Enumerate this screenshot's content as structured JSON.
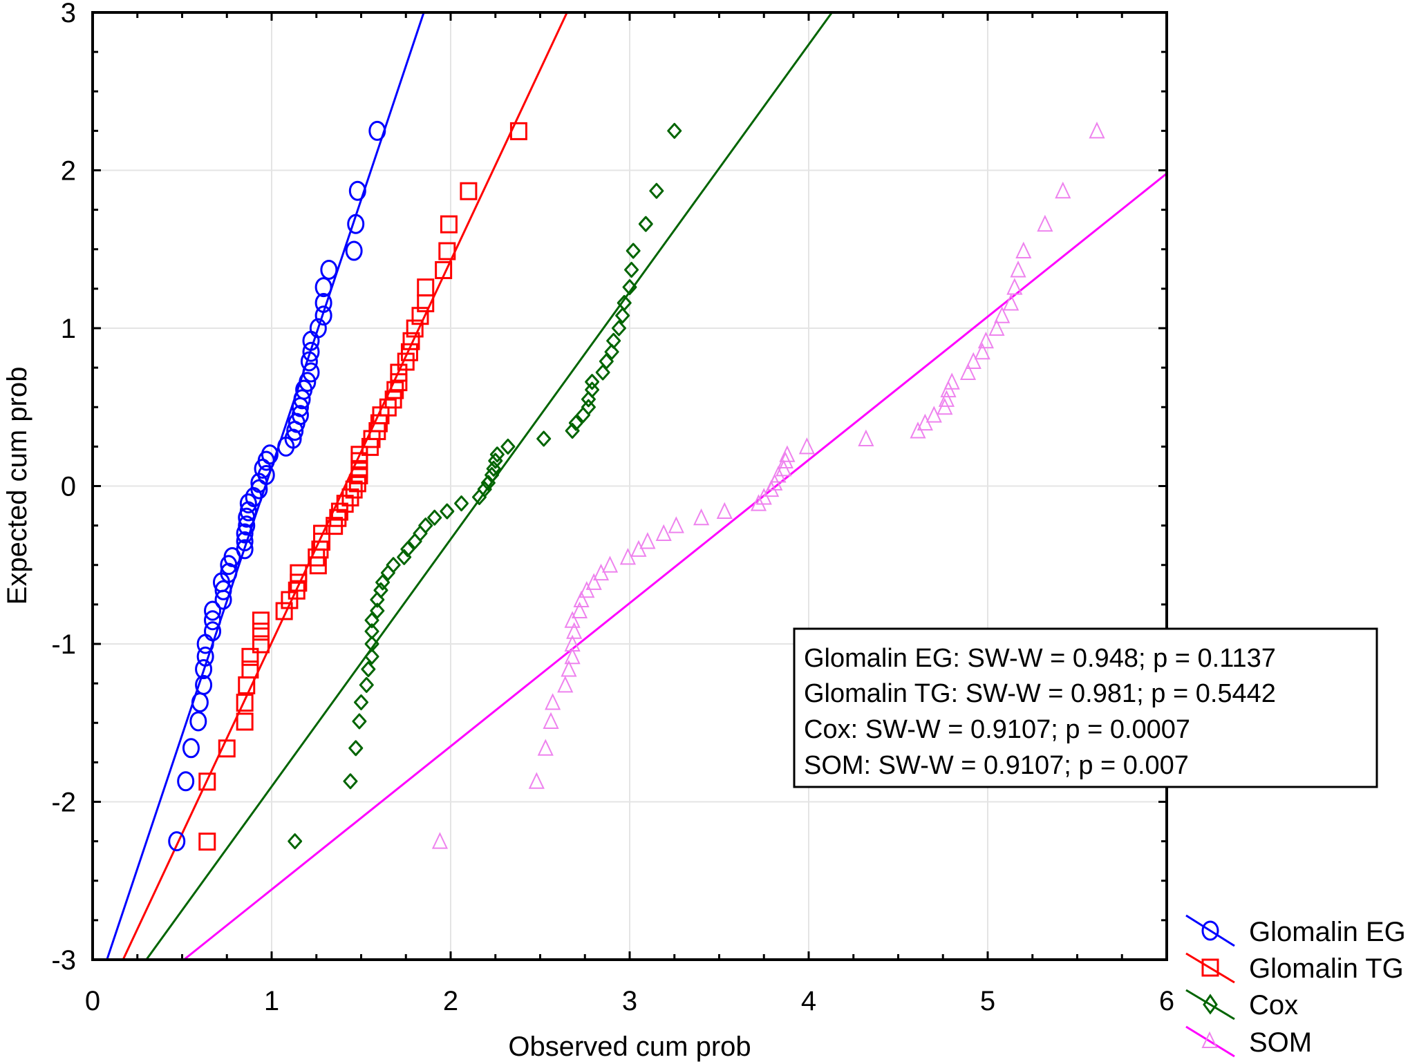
{
  "chart_data": {
    "type": "scatter",
    "title": "",
    "xlabel": "Observed cum prob",
    "ylabel": "Expected cum prob",
    "xlim": [
      0,
      6
    ],
    "ylim": [
      -3,
      3
    ],
    "x_ticks": [
      "0",
      "1",
      "2",
      "3",
      "4",
      "5",
      "6"
    ],
    "y_ticks": [
      "3",
      "2",
      "1",
      "0",
      "-1",
      "-2",
      "-3"
    ],
    "grid": true,
    "legend_position": "bottom-right",
    "expected": [
      -2.25,
      -1.87,
      -1.66,
      -1.49,
      -1.37,
      -1.26,
      -1.16,
      -1.08,
      -1.0,
      -0.92,
      -0.85,
      -0.79,
      -0.72,
      -0.66,
      -0.61,
      -0.55,
      -0.5,
      -0.45,
      -0.4,
      -0.35,
      -0.3,
      -0.25,
      -0.2,
      -0.16,
      -0.11,
      -0.07,
      -0.02,
      0.02,
      0.07,
      0.11,
      0.16,
      0.2,
      0.25,
      0.3,
      0.35,
      0.4,
      0.45,
      0.5,
      0.55,
      0.61,
      0.66,
      0.72,
      0.79,
      0.85,
      0.92,
      1.0,
      1.08,
      1.16,
      1.26,
      1.37,
      1.49,
      1.66,
      1.87,
      2.25
    ],
    "series": [
      {
        "name": "Glomalin EG",
        "marker": "circle",
        "color": "#0000ff",
        "marker_color": "#0000ff",
        "observed": [
          0.47,
          0.52,
          0.55,
          0.59,
          0.6,
          0.62,
          0.62,
          0.63,
          0.63,
          0.67,
          0.67,
          0.67,
          0.73,
          0.73,
          0.72,
          0.76,
          0.76,
          0.78,
          0.85,
          0.85,
          0.85,
          0.86,
          0.86,
          0.87,
          0.87,
          0.9,
          0.93,
          0.93,
          0.97,
          0.95,
          0.97,
          0.99,
          1.08,
          1.12,
          1.13,
          1.14,
          1.16,
          1.16,
          1.17,
          1.18,
          1.2,
          1.22,
          1.21,
          1.22,
          1.22,
          1.26,
          1.29,
          1.29,
          1.29,
          1.32,
          1.46,
          1.47,
          1.48,
          1.59
        ],
        "fit_line": [
          [
            0.08,
            -3
          ],
          [
            1.85,
            3
          ]
        ]
      },
      {
        "name": "Glomalin TG",
        "marker": "square",
        "color": "#ff0000",
        "marker_color": "#ff0000",
        "observed": [
          0.64,
          0.64,
          0.75,
          0.85,
          0.85,
          0.86,
          0.88,
          0.88,
          0.94,
          0.94,
          0.94,
          1.07,
          1.1,
          1.14,
          1.15,
          1.15,
          1.26,
          1.25,
          1.27,
          1.28,
          1.28,
          1.35,
          1.37,
          1.38,
          1.41,
          1.44,
          1.46,
          1.48,
          1.49,
          1.49,
          1.49,
          1.49,
          1.55,
          1.56,
          1.59,
          1.6,
          1.61,
          1.65,
          1.68,
          1.69,
          1.71,
          1.71,
          1.75,
          1.77,
          1.78,
          1.8,
          1.83,
          1.86,
          1.86,
          1.96,
          1.98,
          1.99,
          2.1,
          2.38
        ],
        "fit_line": [
          [
            0.17,
            -3
          ],
          [
            2.65,
            3
          ]
        ]
      },
      {
        "name": "Cox",
        "marker": "diamond",
        "color": "#006400",
        "marker_color": "#006400",
        "observed": [
          1.13,
          1.44,
          1.47,
          1.49,
          1.5,
          1.53,
          1.54,
          1.56,
          1.56,
          1.56,
          1.56,
          1.59,
          1.59,
          1.61,
          1.62,
          1.65,
          1.68,
          1.74,
          1.76,
          1.8,
          1.83,
          1.86,
          1.91,
          1.98,
          2.06,
          2.16,
          2.19,
          2.21,
          2.23,
          2.24,
          2.25,
          2.26,
          2.32,
          2.52,
          2.68,
          2.7,
          2.74,
          2.77,
          2.77,
          2.79,
          2.79,
          2.85,
          2.87,
          2.9,
          2.91,
          2.94,
          2.96,
          2.97,
          3.0,
          3.01,
          3.02,
          3.09,
          3.15,
          3.25
        ],
        "fit_line": [
          [
            0.3,
            -3
          ],
          [
            4.13,
            3
          ]
        ]
      },
      {
        "name": "SOM",
        "marker": "triangle",
        "color": "#ff00ff",
        "marker_color": "#ee82ee",
        "observed": [
          1.94,
          2.48,
          2.53,
          2.56,
          2.57,
          2.64,
          2.66,
          2.68,
          2.68,
          2.69,
          2.68,
          2.72,
          2.73,
          2.76,
          2.8,
          2.84,
          2.89,
          2.99,
          3.05,
          3.1,
          3.19,
          3.26,
          3.4,
          3.53,
          3.72,
          3.75,
          3.79,
          3.81,
          3.83,
          3.86,
          3.87,
          3.88,
          3.99,
          4.32,
          4.61,
          4.65,
          4.7,
          4.76,
          4.77,
          4.78,
          4.8,
          4.89,
          4.92,
          4.97,
          4.99,
          5.05,
          5.08,
          5.13,
          5.15,
          5.17,
          5.2,
          5.32,
          5.42,
          5.61
        ],
        "fit_line": [
          [
            0.51,
            -3
          ],
          [
            6.0,
            1.98
          ]
        ]
      }
    ],
    "annotations": [
      "Glomalin EG: SW-W = 0.948; p = 0.1137",
      "Glomalin TG: SW-W = 0.981; p = 0.5442",
      "Cox: SW-W = 0.9107; p = 0.0007",
      "SOM: SW-W = 0.9107; p = 0.007"
    ]
  }
}
